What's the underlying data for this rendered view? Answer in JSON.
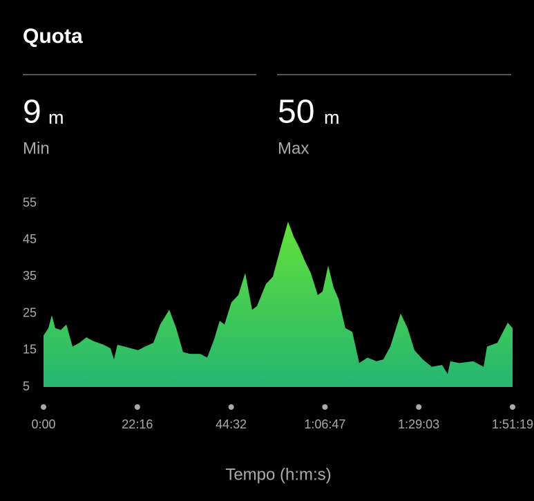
{
  "header": {
    "title": "Quota"
  },
  "stats": [
    {
      "value": "9",
      "unit": "m",
      "label": "Min"
    },
    {
      "value": "50",
      "unit": "m",
      "label": "Max"
    }
  ],
  "chart_data": {
    "type": "area",
    "xlabel": "Tempo (h:m:s)",
    "x": [
      0,
      69,
      118,
      167,
      246,
      325,
      413,
      511,
      610,
      708,
      856,
      954,
      1003,
      1052,
      1151,
      1249,
      1348,
      1446,
      1564,
      1662,
      1790,
      1889,
      1987,
      2085,
      2233,
      2331,
      2430,
      2508,
      2577,
      2675,
      2774,
      2872,
      2970,
      3039,
      3167,
      3266,
      3364,
      3482,
      3560,
      3639,
      3728,
      3806,
      3905,
      3974,
      4053,
      4131,
      4200,
      4298,
      4397,
      4495,
      4613,
      4741,
      4839,
      4938,
      5085,
      5184,
      5282,
      5400,
      5528,
      5675,
      5754,
      5793,
      5921,
      6118,
      6266,
      6315,
      6462,
      6610,
      6679
    ],
    "values": [
      19,
      21,
      24.5,
      21,
      20.5,
      22,
      16,
      17,
      18.5,
      17.5,
      16.5,
      15.5,
      12.5,
      16.5,
      16,
      15.5,
      15,
      16,
      17,
      22,
      26,
      21,
      14.5,
      14,
      14,
      13,
      18,
      23,
      22,
      28,
      30,
      36,
      26,
      27,
      33,
      35,
      42,
      50,
      46,
      43,
      39,
      36,
      30,
      31,
      38,
      32,
      29,
      21,
      20,
      11.5,
      13,
      12,
      12.5,
      16,
      25,
      21,
      15,
      12.5,
      10.5,
      11,
      8.5,
      12,
      11.5,
      12,
      10.5,
      16,
      17,
      22.5,
      21
    ],
    "color_top": "#62e03a",
    "color_bottom": "#25b571",
    "xlim": [
      0,
      6679
    ],
    "xticks": [
      {
        "value": 0,
        "label": "0:00"
      },
      {
        "value": 1336,
        "label": "22:16"
      },
      {
        "value": 2672,
        "label": "44:32"
      },
      {
        "value": 4007,
        "label": "1:06:47"
      },
      {
        "value": 5343,
        "label": "1:29:03"
      },
      {
        "value": 6679,
        "label": "1:51:19"
      }
    ],
    "ylim": [
      5,
      55
    ],
    "yticks": [
      5,
      15,
      25,
      35,
      45,
      55
    ]
  }
}
